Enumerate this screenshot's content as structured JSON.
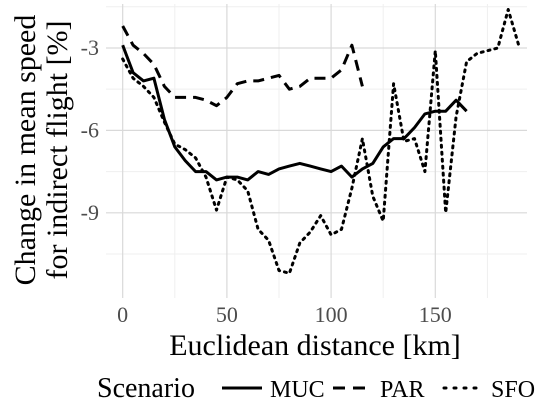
{
  "chart_data": {
    "type": "line",
    "title": "",
    "xlabel": "Euclidean distance [km]",
    "ylabel_lines": [
      "Change in mean speed",
      "for indirect flight [%]"
    ],
    "xlim": [
      -8,
      194
    ],
    "ylim": [
      -12.1,
      -1.4
    ],
    "x_ticks": [
      0,
      50,
      100,
      150
    ],
    "x_tick_labels": [
      "0",
      "50",
      "100",
      "150"
    ],
    "y_ticks": [
      -3,
      -6,
      -9
    ],
    "y_tick_labels": [
      "-3",
      "-6",
      "-9"
    ],
    "grid": true,
    "legend": {
      "title": "Scenario",
      "position": "bottom"
    },
    "series": [
      {
        "name": "MUC",
        "dash": "solid",
        "x": [
          0,
          5,
          10,
          15,
          20,
          25,
          30,
          35,
          40,
          45,
          50,
          55,
          60,
          65,
          70,
          75,
          80,
          85,
          90,
          95,
          100,
          105,
          110,
          115,
          120,
          125,
          130,
          135,
          140,
          145,
          150,
          155,
          160,
          165
        ],
        "y": [
          -2.9,
          -3.9,
          -4.2,
          -4.1,
          -5.6,
          -6.6,
          -7.1,
          -7.5,
          -7.5,
          -7.8,
          -7.7,
          -7.7,
          -7.8,
          -7.5,
          -7.6,
          -7.4,
          -7.3,
          -7.2,
          -7.3,
          -7.4,
          -7.5,
          -7.3,
          -7.7,
          -7.4,
          -7.2,
          -6.6,
          -6.3,
          -6.3,
          -5.9,
          -5.4,
          -5.3,
          -5.3,
          -4.9,
          -5.3
        ]
      },
      {
        "name": "PAR",
        "dash": "dashed",
        "x": [
          0,
          5,
          10,
          15,
          20,
          25,
          30,
          35,
          40,
          45,
          50,
          55,
          60,
          65,
          70,
          75,
          80,
          85,
          90,
          95,
          100,
          105,
          110,
          115
        ],
        "y": [
          -2.2,
          -2.9,
          -3.2,
          -3.6,
          -4.4,
          -4.8,
          -4.8,
          -4.8,
          -4.9,
          -5.1,
          -4.8,
          -4.3,
          -4.2,
          -4.2,
          -4.1,
          -4.0,
          -4.5,
          -4.4,
          -4.1,
          -4.1,
          -4.1,
          -3.8,
          -2.9,
          -4.4
        ]
      },
      {
        "name": "SFO",
        "dash": "dotted",
        "x": [
          0,
          5,
          10,
          15,
          20,
          25,
          30,
          35,
          40,
          45,
          50,
          55,
          60,
          65,
          70,
          75,
          80,
          85,
          90,
          95,
          100,
          105,
          110,
          115,
          120,
          125,
          130,
          135,
          140,
          145,
          150,
          155,
          160,
          165,
          170,
          175,
          180,
          185,
          190
        ],
        "y": [
          -3.4,
          -4.1,
          -4.4,
          -4.8,
          -5.7,
          -6.5,
          -6.7,
          -7.0,
          -7.7,
          -8.9,
          -7.7,
          -7.8,
          -8.2,
          -9.6,
          -10.0,
          -11.1,
          -11.2,
          -10.1,
          -9.7,
          -9.1,
          -9.8,
          -9.6,
          -8.1,
          -6.3,
          -8.4,
          -9.3,
          -4.3,
          -6.4,
          -6.3,
          -7.5,
          -3.1,
          -9.0,
          -5.5,
          -3.5,
          -3.2,
          -3.1,
          -3.0,
          -1.6,
          -2.9
        ]
      }
    ]
  }
}
